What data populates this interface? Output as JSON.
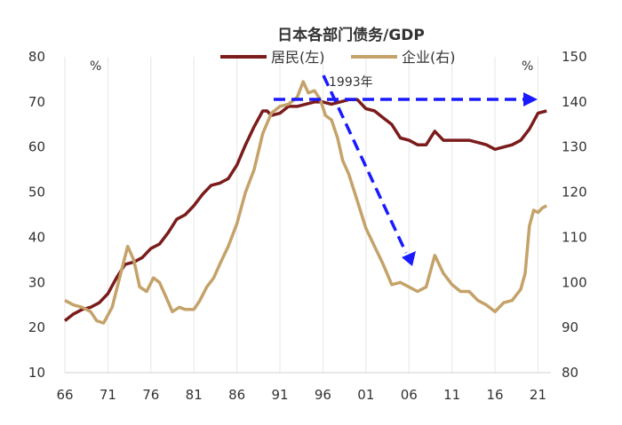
{
  "chart_data": {
    "type": "line",
    "title": "日本各部门债务/GDP",
    "left_unit": "%",
    "right_unit": "%",
    "annotation": "1993年",
    "x_ticks": [
      "66",
      "71",
      "76",
      "81",
      "86",
      "91",
      "96",
      "01",
      "06",
      "11",
      "16",
      "21"
    ],
    "x_tick_years": [
      1966,
      1971,
      1976,
      1981,
      1986,
      1991,
      1996,
      2001,
      2006,
      2011,
      2016,
      2021
    ],
    "xlim": [
      1966,
      2022.5
    ],
    "left_axis": {
      "ylim": [
        10,
        80
      ],
      "ticks": [
        10,
        20,
        30,
        40,
        50,
        60,
        70,
        80
      ]
    },
    "right_axis": {
      "ylim": [
        80,
        150
      ],
      "ticks": [
        80,
        90,
        100,
        110,
        120,
        130,
        140,
        150
      ]
    },
    "grid": "vertical",
    "legend_placement": "top-center",
    "series": [
      {
        "name": "居民(左)",
        "axis": "left",
        "color": "#7b1c1c",
        "x": [
          1966,
          1967,
          1968,
          1969,
          1970,
          1971,
          1972,
          1973,
          1974,
          1975,
          1976,
          1977,
          1978,
          1979,
          1980,
          1981,
          1982,
          1983,
          1984,
          1985,
          1986,
          1987,
          1988,
          1989,
          1989.5,
          1990,
          1991,
          1992,
          1993,
          1994,
          1995,
          1996,
          1997,
          1998,
          1999,
          2000,
          2001,
          2002,
          2003,
          2004,
          2005,
          2006,
          2007,
          2008,
          2009,
          2010,
          2011,
          2012,
          2013,
          2014,
          2015,
          2016,
          2017,
          2018,
          2019,
          2020,
          2021,
          2022
        ],
        "y": [
          21.5,
          23,
          24,
          24.5,
          25.5,
          27.5,
          31,
          34,
          34.5,
          35.5,
          37.5,
          38.5,
          41,
          44,
          45,
          47,
          49.5,
          51.5,
          52,
          53,
          56,
          60.5,
          64.5,
          68,
          68,
          67,
          67.5,
          69,
          69,
          69.5,
          70,
          70,
          69.5,
          70,
          70.5,
          70.5,
          68.5,
          68,
          66.5,
          65,
          62,
          61.5,
          60.5,
          60.5,
          63.5,
          61.5,
          61.5,
          61.5,
          61.5,
          61,
          60.5,
          59.5,
          60,
          60.5,
          61.5,
          64,
          67.5,
          68
        ]
      },
      {
        "name": "企业(右)",
        "axis": "right",
        "color": "#c4a269",
        "x": [
          1966,
          1967,
          1968,
          1969,
          1969.7,
          1970.5,
          1971.5,
          1972.5,
          1973.3,
          1974,
          1974.7,
          1975.5,
          1976.3,
          1977,
          1977.7,
          1978.5,
          1979.3,
          1980,
          1981,
          1981.7,
          1982.5,
          1983.3,
          1984,
          1985,
          1986,
          1987,
          1988,
          1989,
          1990,
          1991,
          1992,
          1993,
          1993.7,
          1994.3,
          1995,
          1995.7,
          1996.3,
          1997,
          1997.7,
          1998.3,
          1999,
          2000,
          2001,
          2002,
          2003,
          2004,
          2005,
          2006,
          2007,
          2008,
          2009,
          2010,
          2011,
          2012,
          2013,
          2014,
          2015,
          2016,
          2017,
          2018,
          2019,
          2019.5,
          2020,
          2020.5,
          2021,
          2021.5,
          2022
        ],
        "y": [
          96,
          95,
          94.5,
          93.5,
          91.5,
          91,
          94.5,
          102,
          108,
          105,
          99,
          98,
          101,
          100,
          97,
          93.5,
          94.5,
          94,
          94,
          96,
          99,
          101,
          104,
          108,
          113,
          120,
          125,
          133,
          137.5,
          139,
          139.5,
          141,
          144.5,
          142,
          142.5,
          140.5,
          137,
          136,
          132,
          127,
          124,
          118,
          112,
          108,
          104,
          99.5,
          100,
          99,
          98,
          99,
          106,
          102,
          99.5,
          98,
          98,
          96,
          95,
          93.5,
          95.5,
          96,
          98.5,
          102,
          112.5,
          116,
          115.5,
          116.5,
          117
        ]
      }
    ]
  },
  "annotations_colors": {
    "arrow": "#1a1aff"
  }
}
